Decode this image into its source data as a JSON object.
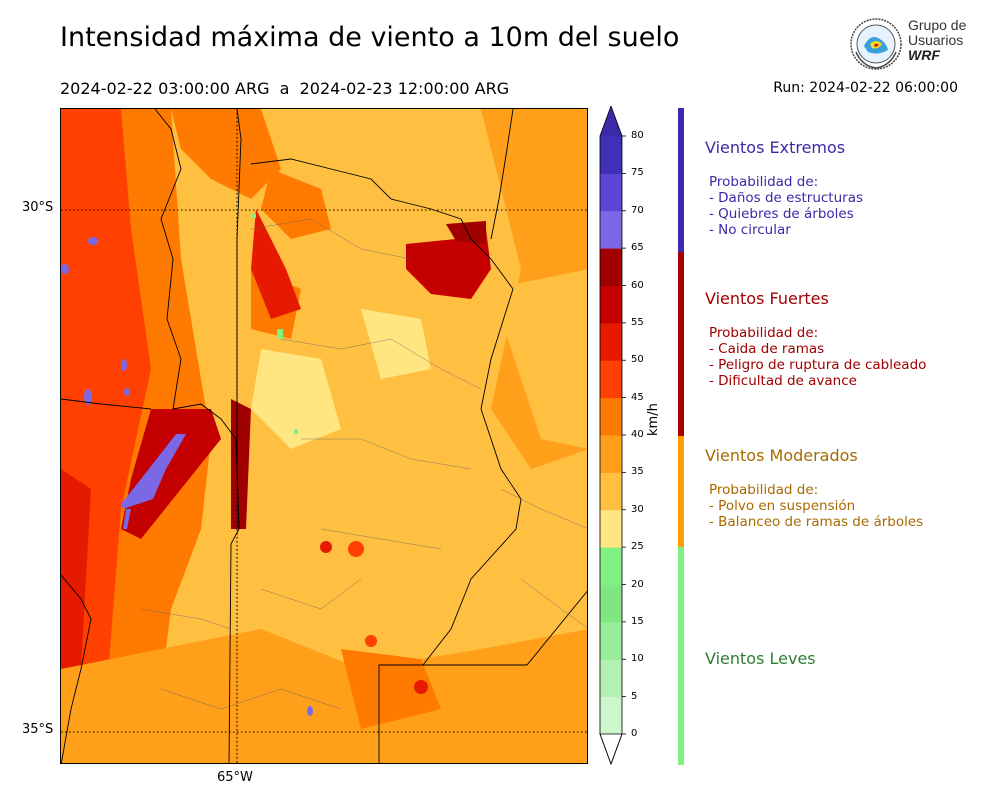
{
  "header": {
    "title": "Intensidad máxima de viento a 10m del suelo",
    "period": "2024-02-22 03:00:00 ARG  a  2024-02-23 12:00:00 ARG",
    "run": "Run: 2024-02-22 06:00:00"
  },
  "logo": {
    "line1": "Grupo de",
    "line2": "Usuarios",
    "line3": "WRF"
  },
  "map": {
    "lat_labels": [
      "30°S",
      "35°S"
    ],
    "lon_labels": [
      "65°W"
    ]
  },
  "colorbar": {
    "unit": "km/h",
    "ticks": [
      "0",
      "5",
      "10",
      "15",
      "20",
      "25",
      "30",
      "35",
      "40",
      "45",
      "50",
      "55",
      "60",
      "65",
      "70",
      "75",
      "80"
    ],
    "colors": [
      "#e6fde6",
      "#ccf7cc",
      "#b3f1b3",
      "#99ed99",
      "#80e680",
      "#80f080",
      "#ffe680",
      "#ffbf40",
      "#ff9f1a",
      "#ff7a00",
      "#ff4000",
      "#e61a00",
      "#c40000",
      "#a00000",
      "#7b68e6",
      "#5c46d6",
      "#4030b8",
      "#2a1aa0"
    ],
    "under_color": "#ffffff",
    "over_color": "#3a2aa8"
  },
  "categories": [
    {
      "name": "Vientos Extremos",
      "color": "#3a2aa8",
      "band": "#3c2bb0",
      "lines": [
        "Probabilidad de:",
        "- Daños de estructuras",
        "- Quiebres de árboles",
        "- No circular"
      ]
    },
    {
      "name": "Vientos Fuertes",
      "color": "#a00000",
      "band": "#a80000",
      "lines": [
        "Probabilidad de:",
        "- Caida de ramas",
        "- Peligro de ruptura de cableado",
        "- Dificultad de avance"
      ]
    },
    {
      "name": "Vientos Moderados",
      "color": "#a86a00",
      "band": "#ffa000",
      "lines": [
        "Probabilidad de:",
        "- Polvo en suspensión",
        "- Balanceo de ramas de árboles"
      ]
    },
    {
      "name": "Vientos Leves",
      "color": "#2e7d32",
      "band": "#80f080",
      "lines": []
    }
  ]
}
